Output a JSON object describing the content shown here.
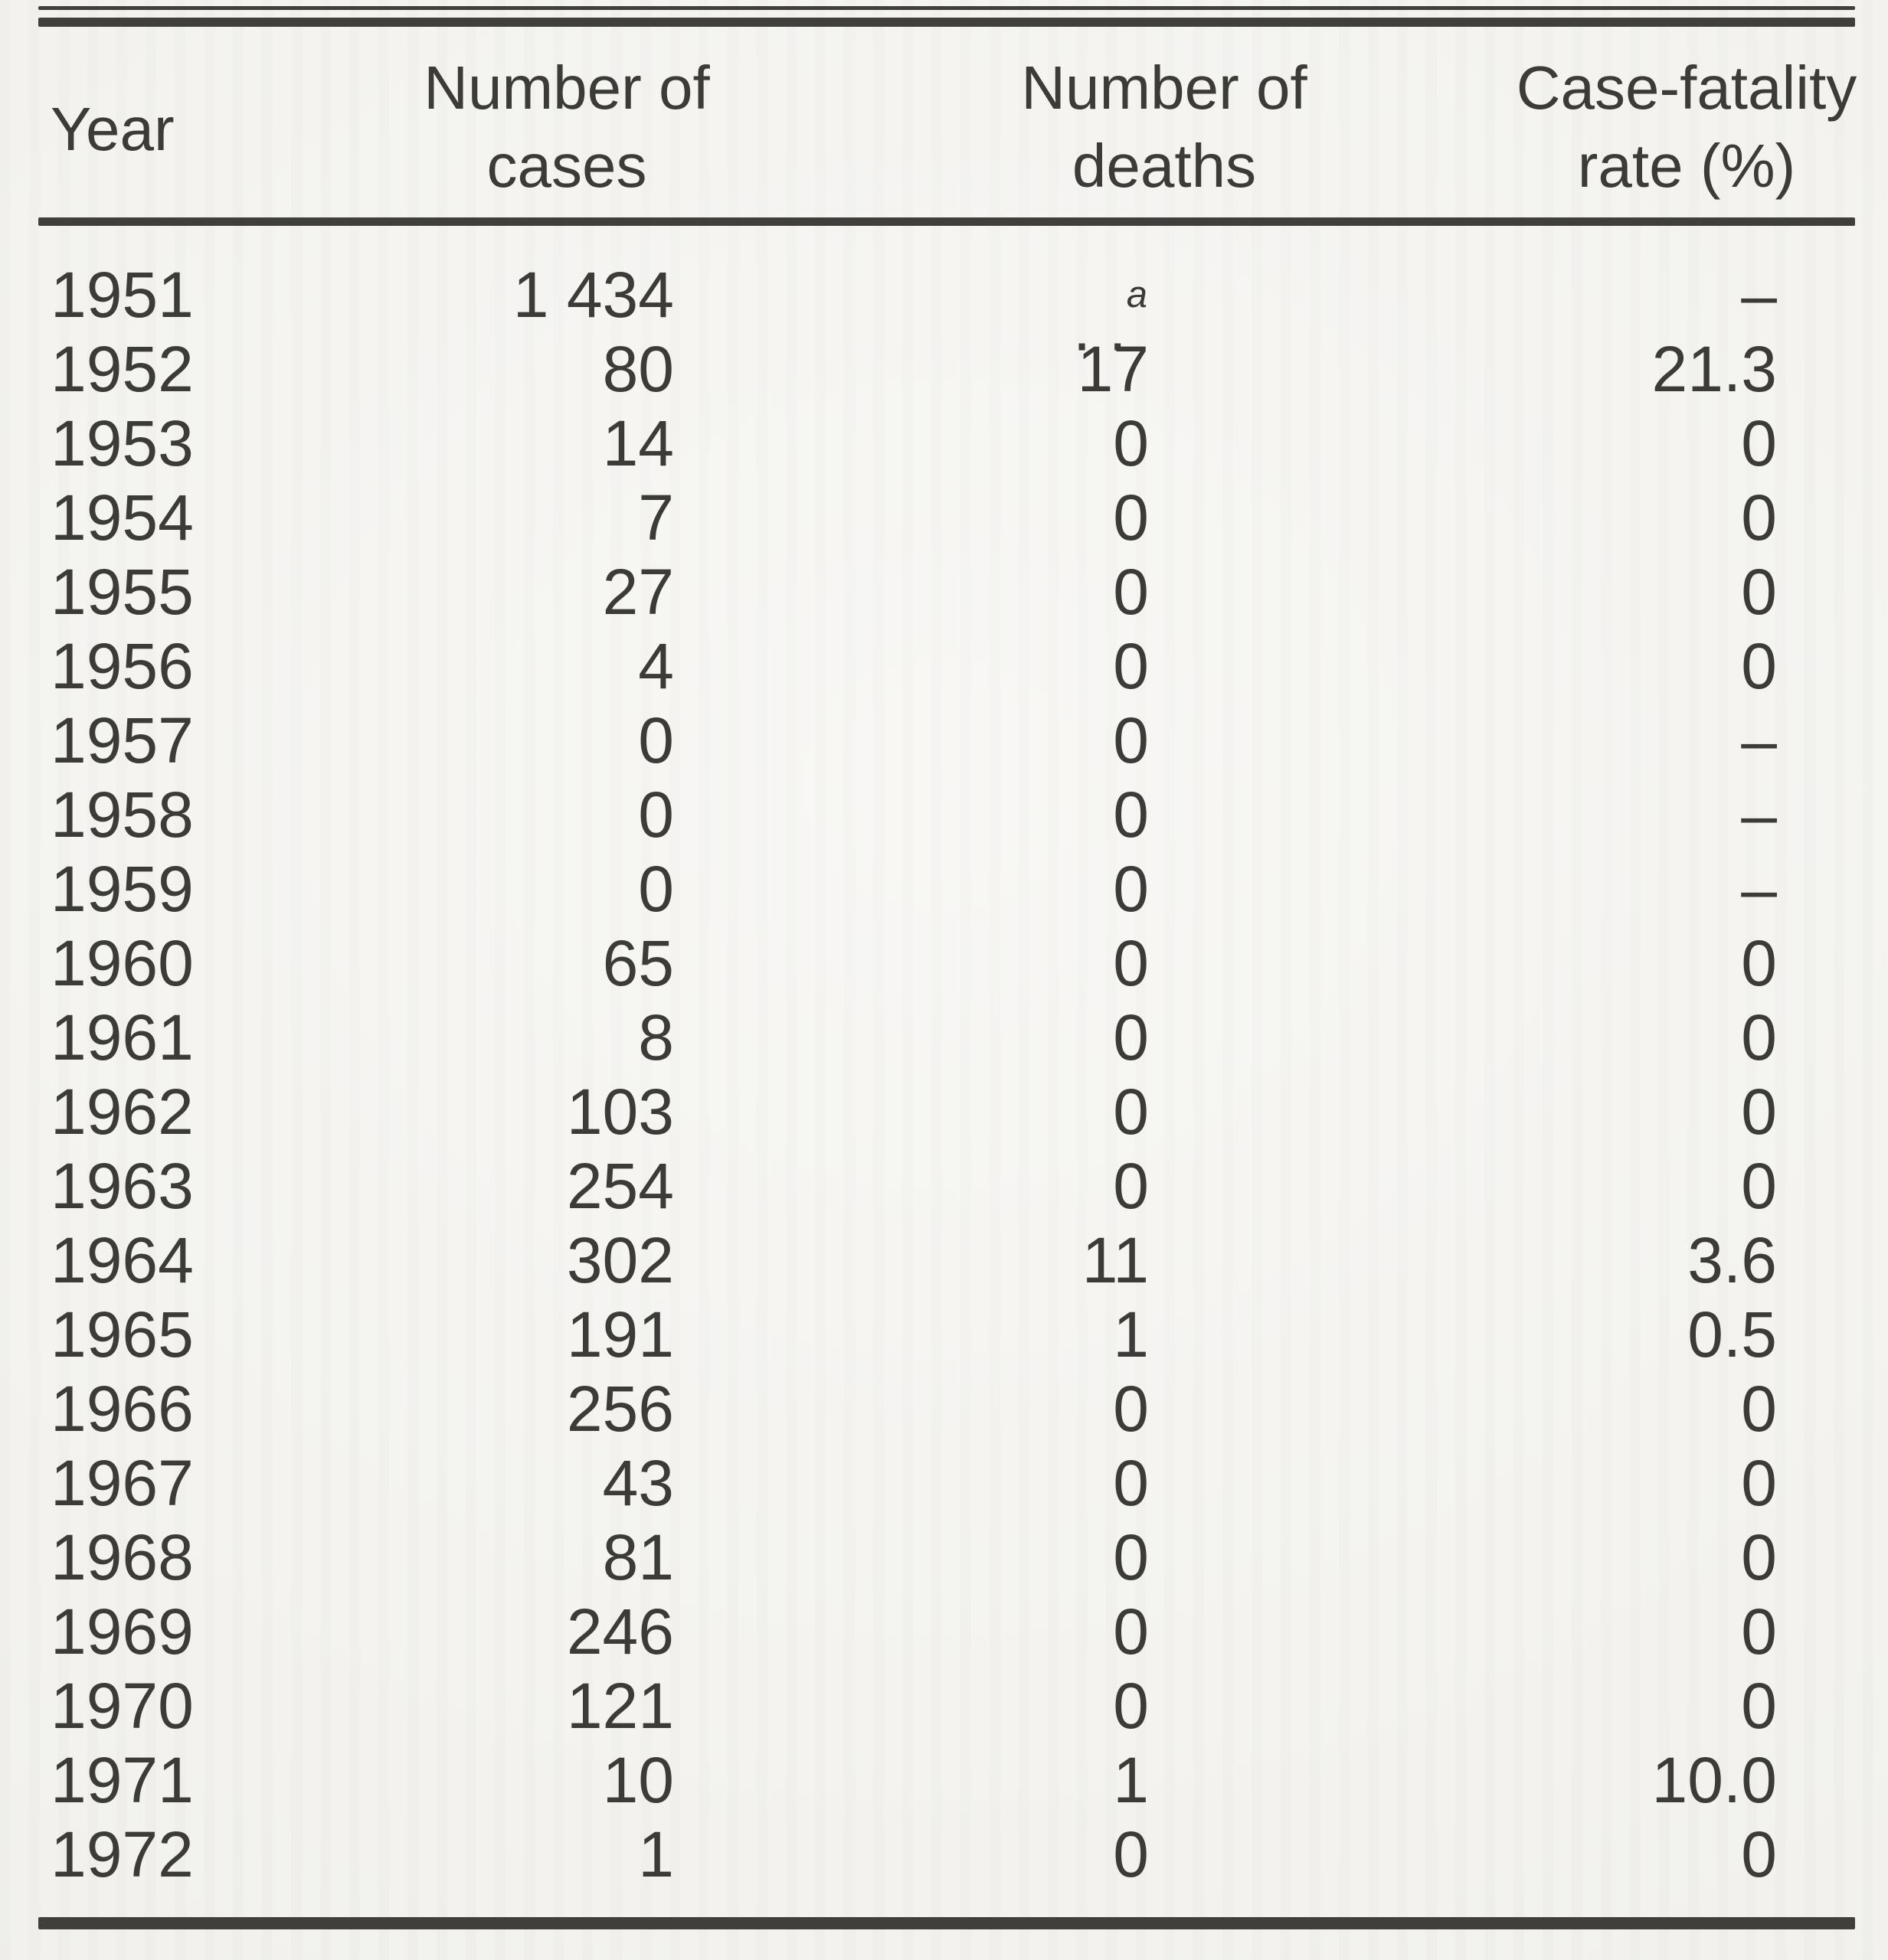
{
  "page": {
    "paper_color": "#f4f3ef",
    "ink_color": "#3d3b38",
    "rule_color": "#413f3c"
  },
  "table": {
    "headers": {
      "year": "Year",
      "cases_line1": "Number of",
      "cases_line2": "cases",
      "deaths_line1": "Number of",
      "deaths_line2": "deaths",
      "rate_line1": "Case-fatality",
      "rate_line2": "rate (%)"
    },
    "footnote_marker": "a",
    "rows": [
      {
        "year": "1951",
        "cases": "1 434",
        "deaths": ". .",
        "deaths_sup": "a",
        "rate": "–"
      },
      {
        "year": "1952",
        "cases": "80",
        "deaths": "17",
        "deaths_sup": "",
        "rate": "21.3"
      },
      {
        "year": "1953",
        "cases": "14",
        "deaths": "0",
        "deaths_sup": "",
        "rate": "0"
      },
      {
        "year": "1954",
        "cases": "7",
        "deaths": "0",
        "deaths_sup": "",
        "rate": "0"
      },
      {
        "year": "1955",
        "cases": "27",
        "deaths": "0",
        "deaths_sup": "",
        "rate": "0"
      },
      {
        "year": "1956",
        "cases": "4",
        "deaths": "0",
        "deaths_sup": "",
        "rate": "0"
      },
      {
        "year": "1957",
        "cases": "0",
        "deaths": "0",
        "deaths_sup": "",
        "rate": "–"
      },
      {
        "year": "1958",
        "cases": "0",
        "deaths": "0",
        "deaths_sup": "",
        "rate": "–"
      },
      {
        "year": "1959",
        "cases": "0",
        "deaths": "0",
        "deaths_sup": "",
        "rate": "–"
      },
      {
        "year": "1960",
        "cases": "65",
        "deaths": "0",
        "deaths_sup": "",
        "rate": "0"
      },
      {
        "year": "1961",
        "cases": "8",
        "deaths": "0",
        "deaths_sup": "",
        "rate": "0"
      },
      {
        "year": "1962",
        "cases": "103",
        "deaths": "0",
        "deaths_sup": "",
        "rate": "0"
      },
      {
        "year": "1963",
        "cases": "254",
        "deaths": "0",
        "deaths_sup": "",
        "rate": "0"
      },
      {
        "year": "1964",
        "cases": "302",
        "deaths": "11",
        "deaths_sup": "",
        "rate": "3.6"
      },
      {
        "year": "1965",
        "cases": "191",
        "deaths": "1",
        "deaths_sup": "",
        "rate": "0.5"
      },
      {
        "year": "1966",
        "cases": "256",
        "deaths": "0",
        "deaths_sup": "",
        "rate": "0"
      },
      {
        "year": "1967",
        "cases": "43",
        "deaths": "0",
        "deaths_sup": "",
        "rate": "0"
      },
      {
        "year": "1968",
        "cases": "81",
        "deaths": "0",
        "deaths_sup": "",
        "rate": "0"
      },
      {
        "year": "1969",
        "cases": "246",
        "deaths": "0",
        "deaths_sup": "",
        "rate": "0"
      },
      {
        "year": "1970",
        "cases": "121",
        "deaths": "0",
        "deaths_sup": "",
        "rate": "0"
      },
      {
        "year": "1971",
        "cases": "10",
        "deaths": "1",
        "deaths_sup": "",
        "rate": "10.0"
      },
      {
        "year": "1972",
        "cases": "1",
        "deaths": "0",
        "deaths_sup": "",
        "rate": "0"
      }
    ]
  }
}
